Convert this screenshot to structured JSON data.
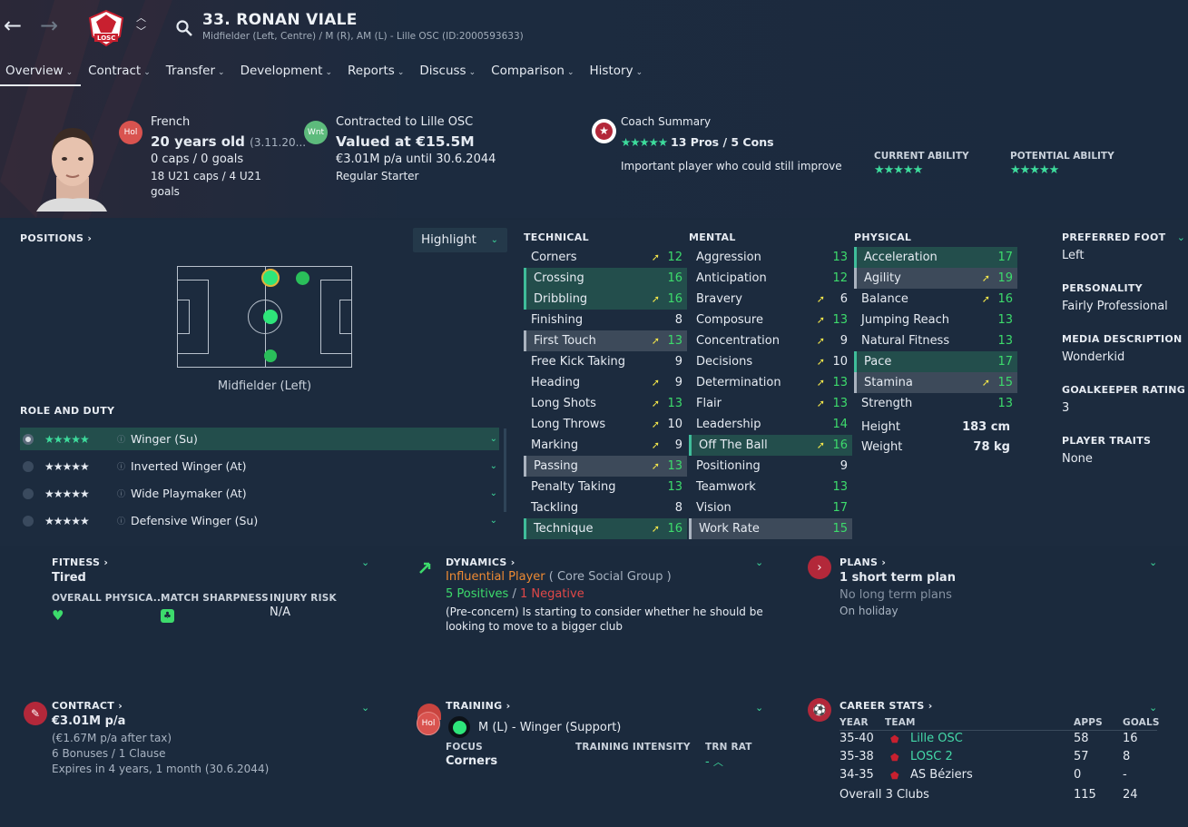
{
  "header": {
    "club_badge_text": "LOSC",
    "player_title": "33. RONAN VIALE",
    "player_subtitle": "Midfielder (Left, Centre) / M (R), AM (L) - Lille OSC (ID:2000593633)"
  },
  "tabs": [
    {
      "label": "Overview"
    },
    {
      "label": "Contract"
    },
    {
      "label": "Transfer"
    },
    {
      "label": "Development"
    },
    {
      "label": "Reports"
    },
    {
      "label": "Discuss"
    },
    {
      "label": "Comparison"
    },
    {
      "label": "History"
    }
  ],
  "info": {
    "nationality_badge": "Hol",
    "nationality": "French",
    "age": "20 years old",
    "dob": "(3.11.20...",
    "caps": "0 caps / 0 goals",
    "u21": "18 U21 caps / 4 U21 goals",
    "status_badge": "Wnt",
    "contract_line": "Contracted to Lille OSC",
    "value": "Valued at €15.5M",
    "wage": "€3.01M p/a until 30.6.2044",
    "squad_status": "Regular Starter",
    "coach_summary_label": "Coach Summary",
    "coach_stars": "★★★★★",
    "pros_cons": "13 Pros / 5 Cons",
    "coach_note": "Important player who could still improve",
    "ca_label": "CURRENT ABILITY",
    "ca_stars": "★★★★★",
    "pa_label": "POTENTIAL ABILITY",
    "pa_stars": "★★★★★"
  },
  "positions": {
    "title": "POSITIONS",
    "highlight_label": "Highlight",
    "position_label": "Midfielder (Left)",
    "role_duty_title": "ROLE AND DUTY",
    "roles": [
      {
        "stars": "★★★★★",
        "name": "Winger (Su)",
        "selected": true
      },
      {
        "stars": "★★★★★",
        "name": "Inverted Winger (At)",
        "selected": false
      },
      {
        "stars": "★★★★★",
        "name": "Wide Playmaker (At)",
        "selected": false
      },
      {
        "stars": "★★★★★",
        "name": "Defensive Winger (Su)",
        "selected": false
      }
    ]
  },
  "attributes": {
    "technical_title": "TECHNICAL",
    "mental_title": "MENTAL",
    "physical_title": "PHYSICAL",
    "technical": [
      {
        "name": "Corners",
        "value": "12",
        "arrow": true,
        "hl": "",
        "green": true
      },
      {
        "name": "Crossing",
        "value": "16",
        "arrow": false,
        "hl": "teal",
        "green": true
      },
      {
        "name": "Dribbling",
        "value": "16",
        "arrow": true,
        "hl": "teal",
        "green": true
      },
      {
        "name": "Finishing",
        "value": "8",
        "arrow": false,
        "hl": "",
        "green": false
      },
      {
        "name": "First Touch",
        "value": "13",
        "arrow": true,
        "hl": "grey",
        "green": true
      },
      {
        "name": "Free Kick Taking",
        "value": "9",
        "arrow": false,
        "hl": "",
        "green": false
      },
      {
        "name": "Heading",
        "value": "9",
        "arrow": true,
        "hl": "",
        "green": false
      },
      {
        "name": "Long Shots",
        "value": "13",
        "arrow": true,
        "hl": "",
        "green": true
      },
      {
        "name": "Long Throws",
        "value": "10",
        "arrow": true,
        "hl": "",
        "green": false
      },
      {
        "name": "Marking",
        "value": "9",
        "arrow": true,
        "hl": "",
        "green": false
      },
      {
        "name": "Passing",
        "value": "13",
        "arrow": true,
        "hl": "grey",
        "green": true
      },
      {
        "name": "Penalty Taking",
        "value": "13",
        "arrow": false,
        "hl": "",
        "green": true
      },
      {
        "name": "Tackling",
        "value": "8",
        "arrow": false,
        "hl": "",
        "green": false
      },
      {
        "name": "Technique",
        "value": "16",
        "arrow": true,
        "hl": "teal",
        "green": true
      }
    ],
    "mental": [
      {
        "name": "Aggression",
        "value": "13",
        "arrow": false,
        "hl": "",
        "green": true
      },
      {
        "name": "Anticipation",
        "value": "12",
        "arrow": false,
        "hl": "",
        "green": true
      },
      {
        "name": "Bravery",
        "value": "6",
        "arrow": true,
        "hl": "",
        "green": false
      },
      {
        "name": "Composure",
        "value": "13",
        "arrow": true,
        "hl": "",
        "green": true
      },
      {
        "name": "Concentration",
        "value": "9",
        "arrow": true,
        "hl": "",
        "green": false
      },
      {
        "name": "Decisions",
        "value": "10",
        "arrow": true,
        "hl": "",
        "green": false
      },
      {
        "name": "Determination",
        "value": "13",
        "arrow": true,
        "hl": "",
        "green": true
      },
      {
        "name": "Flair",
        "value": "13",
        "arrow": true,
        "hl": "",
        "green": true
      },
      {
        "name": "Leadership",
        "value": "14",
        "arrow": false,
        "hl": "",
        "green": true
      },
      {
        "name": "Off The Ball",
        "value": "16",
        "arrow": true,
        "hl": "teal",
        "green": true
      },
      {
        "name": "Positioning",
        "value": "9",
        "arrow": false,
        "hl": "",
        "green": false
      },
      {
        "name": "Teamwork",
        "value": "13",
        "arrow": false,
        "hl": "",
        "green": true
      },
      {
        "name": "Vision",
        "value": "17",
        "arrow": false,
        "hl": "",
        "green": true
      },
      {
        "name": "Work Rate",
        "value": "15",
        "arrow": false,
        "hl": "grey",
        "green": true
      }
    ],
    "physical": [
      {
        "name": "Acceleration",
        "value": "17",
        "arrow": false,
        "hl": "teal",
        "green": true
      },
      {
        "name": "Agility",
        "value": "19",
        "arrow": true,
        "hl": "grey",
        "green": true
      },
      {
        "name": "Balance",
        "value": "16",
        "arrow": true,
        "hl": "",
        "green": true
      },
      {
        "name": "Jumping Reach",
        "value": "13",
        "arrow": false,
        "hl": "",
        "green": true
      },
      {
        "name": "Natural Fitness",
        "value": "13",
        "arrow": false,
        "hl": "",
        "green": true
      },
      {
        "name": "Pace",
        "value": "17",
        "arrow": false,
        "hl": "teal",
        "green": true
      },
      {
        "name": "Stamina",
        "value": "15",
        "arrow": true,
        "hl": "grey",
        "green": true
      },
      {
        "name": "Strength",
        "value": "13",
        "arrow": false,
        "hl": "",
        "green": true
      }
    ],
    "height_label": "Height",
    "height_value": "183 cm",
    "weight_label": "Weight",
    "weight_value": "78 kg"
  },
  "side": {
    "foot_label": "PREFERRED FOOT",
    "foot_value": "Left",
    "personality_label": "PERSONALITY",
    "personality_value": "Fairly Professional",
    "media_label": "MEDIA DESCRIPTION",
    "media_value": "Wonderkid",
    "gk_label": "GOALKEEPER RATING",
    "gk_value": "3",
    "traits_label": "PLAYER TRAITS",
    "traits_value": "None"
  },
  "fitness": {
    "title": "FITNESS",
    "status": "Tired",
    "overall_label": "OVERALL PHYSICA...",
    "sharpness_label": "MATCH SHARPNESS",
    "injury_label": "INJURY RISK",
    "injury_value": "N/A"
  },
  "dynamics": {
    "title": "DYNAMICS",
    "influence": "Influential Player",
    "group": "( Core Social Group )",
    "positives": "5 Positives",
    "slash": "/",
    "negatives": "1 Negative",
    "note": "(Pre-concern) Is starting to consider whether he should be looking to move to a bigger club"
  },
  "plans": {
    "title": "PLANS",
    "short": "1 short term plan",
    "long": "No long term plans",
    "holiday": "On holiday"
  },
  "contract": {
    "title": "CONTRACT",
    "wage": "€3.01M p/a",
    "after_tax": "(€1.67M p/a after tax)",
    "bonuses": "6 Bonuses / 1 Clause",
    "expires": "Expires in 4 years, 1 month (30.6.2044)"
  },
  "training": {
    "title": "TRAINING",
    "badge": "Hol",
    "role": "M (L) - Winger (Support)",
    "focus_label": "FOCUS",
    "focus_value": "Corners",
    "intensity_label": "TRAINING INTENSITY",
    "trn_label": "TRN RAT",
    "trn_value": "-"
  },
  "career": {
    "title": "CAREER STATS",
    "headers": [
      "YEAR",
      "TEAM",
      "APPS",
      "GOALS"
    ],
    "rows": [
      {
        "year": "35-40",
        "team": "Lille OSC",
        "apps": "58",
        "goals": "16",
        "link": true
      },
      {
        "year": "35-38",
        "team": "LOSC 2",
        "apps": "57",
        "goals": "8",
        "link": true
      },
      {
        "year": "34-35",
        "team": "AS Béziers",
        "apps": "0",
        "goals": "-",
        "link": false
      }
    ],
    "overall_label": "Overall 3 Clubs",
    "overall_apps": "115",
    "overall_goals": "24"
  },
  "colors": {
    "accent": "#3ddb9c",
    "highlight_teal": "#234e4c",
    "club_red": "#c8202f"
  }
}
